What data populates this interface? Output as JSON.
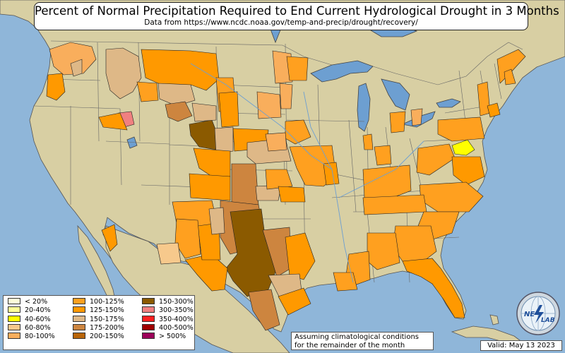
{
  "title": "Percent of Normal Precipitation Required to End Current Hydrological Drought in 3 Months",
  "subtitle": "Data from https://www.ncdc.noaa.gov/temp-and-precip/drought/recovery/",
  "legend": [
    {
      "label": "< 20%",
      "color": "#ffffd9"
    },
    {
      "label": "20-40%",
      "color": "#ffff99"
    },
    {
      "label": "40-60%",
      "color": "#ffff00"
    },
    {
      "label": "60-80%",
      "color": "#f7c98c"
    },
    {
      "label": "80-100%",
      "color": "#f9ae5c"
    },
    {
      "label": "100-125%",
      "color": "#ffa01f"
    },
    {
      "label": "125-150%",
      "color": "#ff9900"
    },
    {
      "label": "150-175%",
      "color": "#deb887"
    },
    {
      "label": "175-200%",
      "color": "#cd853f"
    },
    {
      "label": "200-150%",
      "color": "#b8650a"
    },
    {
      "label": "150-300%",
      "color": "#8b5a00"
    },
    {
      "label": "300-350%",
      "color": "#f08080"
    },
    {
      "label": "350-400%",
      "color": "#ff2020"
    },
    {
      "label": "400-500%",
      "color": "#a00000"
    },
    {
      "label": "> 500%",
      "color": "#9c005a"
    }
  ],
  "note": {
    "line1": "Assuming climatological conditions",
    "line2": "for the remainder of the month"
  },
  "valid": "Valid: May 13 2023",
  "logo": {
    "text_top": "NE",
    "text_bottom": "LAB",
    "icon": "globe-logo-icon"
  },
  "colors": {
    "ocean": "#8fb6d9",
    "land": "#d9cfa6",
    "water": "#6d9fd1"
  }
}
